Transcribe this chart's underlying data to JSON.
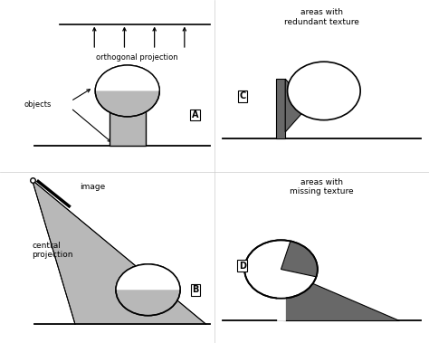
{
  "light_gray": "#b8b8b8",
  "dark_gray": "#686868",
  "white": "#ffffff",
  "black": "#000000",
  "label_A": "A",
  "label_B": "B",
  "label_C": "C",
  "label_D": "D",
  "text_orth": "orthogonal projection",
  "text_objects": "objects",
  "text_image": "image",
  "text_central": "central\nprojection",
  "text_areas_redundant": "areas with\nredundant texture",
  "text_areas_missing": "areas with\nmissing texture"
}
